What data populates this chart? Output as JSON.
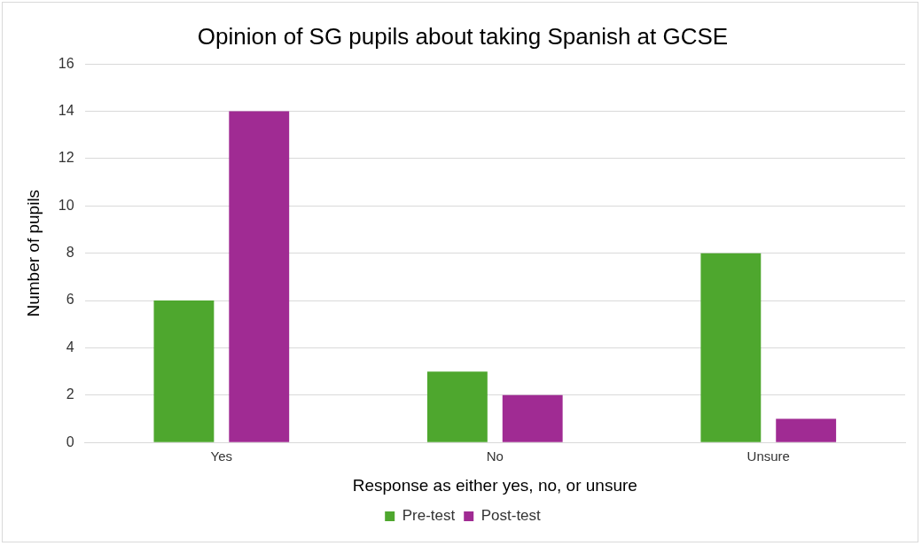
{
  "chart_data": {
    "type": "bar",
    "title": "Opinion of SG pupils about taking Spanish at GCSE",
    "xlabel": "Response as either yes, no, or unsure",
    "ylabel": "Number of pupils",
    "categories": [
      "Yes",
      "No",
      "Unsure"
    ],
    "series": [
      {
        "name": "Pre-test",
        "color": "#4ea72e",
        "values": [
          6,
          3,
          8
        ]
      },
      {
        "name": "Post-test",
        "color": "#a02b93",
        "values": [
          14,
          2,
          1
        ]
      }
    ],
    "ylim": [
      0,
      16
    ],
    "yticks": [
      0,
      2,
      4,
      6,
      8,
      10,
      12,
      14,
      16
    ],
    "grid": "y",
    "legend": "bottom"
  }
}
